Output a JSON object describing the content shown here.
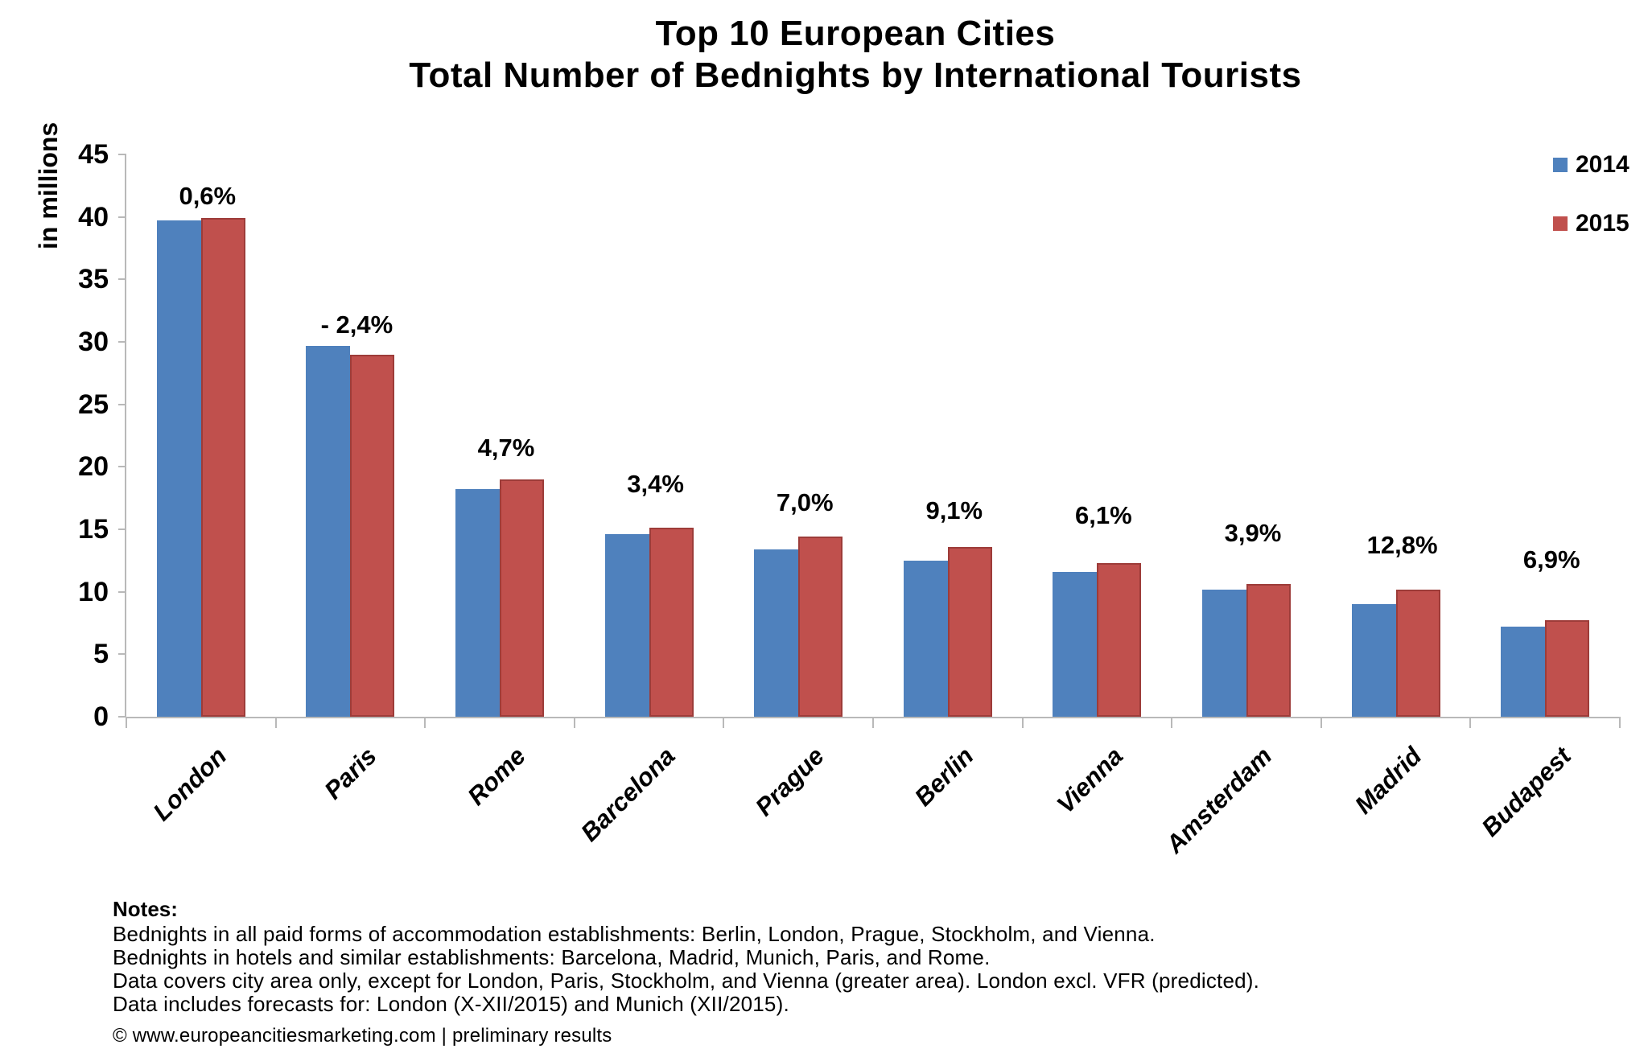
{
  "title": {
    "line1": "Top 10 European Cities",
    "line2": "Total Number of Bednights by International Tourists"
  },
  "chart_data": {
    "type": "bar",
    "title": "Top 10 European Cities — Total Number of Bednights by International Tourists",
    "xlabel": "",
    "ylabel": "in millions",
    "ylim": [
      0,
      45
    ],
    "ytick_step": 5,
    "grid": false,
    "legend_position": "top-right",
    "categories": [
      "London",
      "Paris",
      "Rome",
      "Barcelona",
      "Prague",
      "Berlin",
      "Vienna",
      "Amsterdam",
      "Madrid",
      "Budapest"
    ],
    "series": [
      {
        "name": "2014",
        "color": "#4F81BD",
        "values": [
          39.7,
          29.7,
          18.2,
          14.6,
          13.4,
          12.5,
          11.6,
          10.2,
          9.0,
          7.2
        ]
      },
      {
        "name": "2015",
        "color": "#C0504D",
        "values": [
          39.9,
          29.0,
          19.0,
          15.1,
          14.4,
          13.6,
          12.3,
          10.6,
          10.2,
          7.7
        ]
      }
    ],
    "change_labels": [
      "0,6%",
      "- 2,4%",
      "4,7%",
      "3,4%",
      "7,0%",
      "9,1%",
      "6,1%",
      "3,9%",
      "12,8%",
      "6,9%"
    ]
  },
  "legend": [
    {
      "label": "2014",
      "color": "#4F81BD"
    },
    {
      "label": "2015",
      "color": "#C0504D"
    }
  ],
  "notes": {
    "heading": "Notes:",
    "lines": [
      "Bednights in all paid forms of accommodation establishments: Berlin, London, Prague, Stockholm, and Vienna.",
      "Bednights in hotels and similar establishments: Barcelona, Madrid, Munich, Paris, and Rome.",
      "Data covers city area only, except for London, Paris, Stockholm, and Vienna (greater area). London excl. VFR (predicted).",
      "Data includes forecasts for: London (X-XII/2015) and Munich (XII/2015)."
    ]
  },
  "footer": "© www.europeancitiesmarketing.com | preliminary results",
  "colors": {
    "bar_2014": "#4F81BD",
    "bar_2015": "#C0504D",
    "bar_2015_border": "#9D3C39",
    "axis": "#B9B9B9",
    "text": "#000000"
  }
}
